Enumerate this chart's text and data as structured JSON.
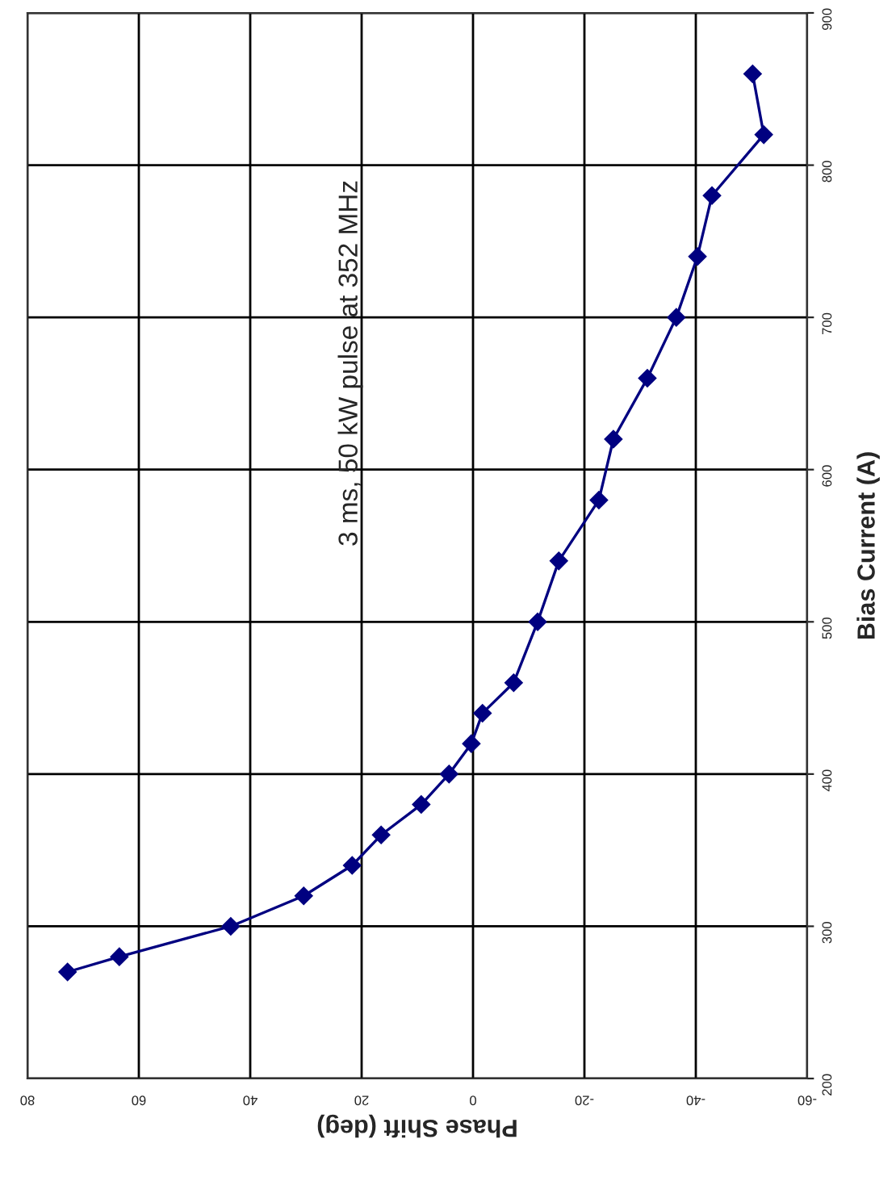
{
  "chart_data": {
    "type": "line",
    "xlabel": "Phase Shift (deg)",
    "ylabel": "Bias Current (A)",
    "annotations": [
      "3 ms, 50 kW pulse at 352 MHz"
    ],
    "series": [
      {
        "color": "#000080",
        "x": [
          72.8,
          63.5,
          43.5,
          30.4,
          21.7,
          16.5,
          9.3,
          4.3,
          0.3,
          -1.7,
          -7.3,
          -11.6,
          -15.4,
          -22.6,
          -25.2,
          -31.3,
          -36.5,
          -40.3,
          -42.9,
          -52.2,
          -50.2
        ],
        "values": [
          270,
          280,
          300,
          320,
          340,
          360,
          380,
          400,
          420,
          440,
          460,
          500,
          540,
          580,
          620,
          660,
          700,
          740,
          780,
          820,
          860
        ]
      }
    ],
    "xlim": [
      80,
      -60
    ],
    "xticks": [
      80,
      60,
      40,
      20,
      0,
      -20,
      -40,
      -60
    ],
    "ylim": [
      200,
      900
    ],
    "yticks": [
      200,
      300,
      400,
      500,
      600,
      700,
      800,
      900
    ],
    "grid": true,
    "marker": "diamond",
    "line_style": "solid"
  }
}
